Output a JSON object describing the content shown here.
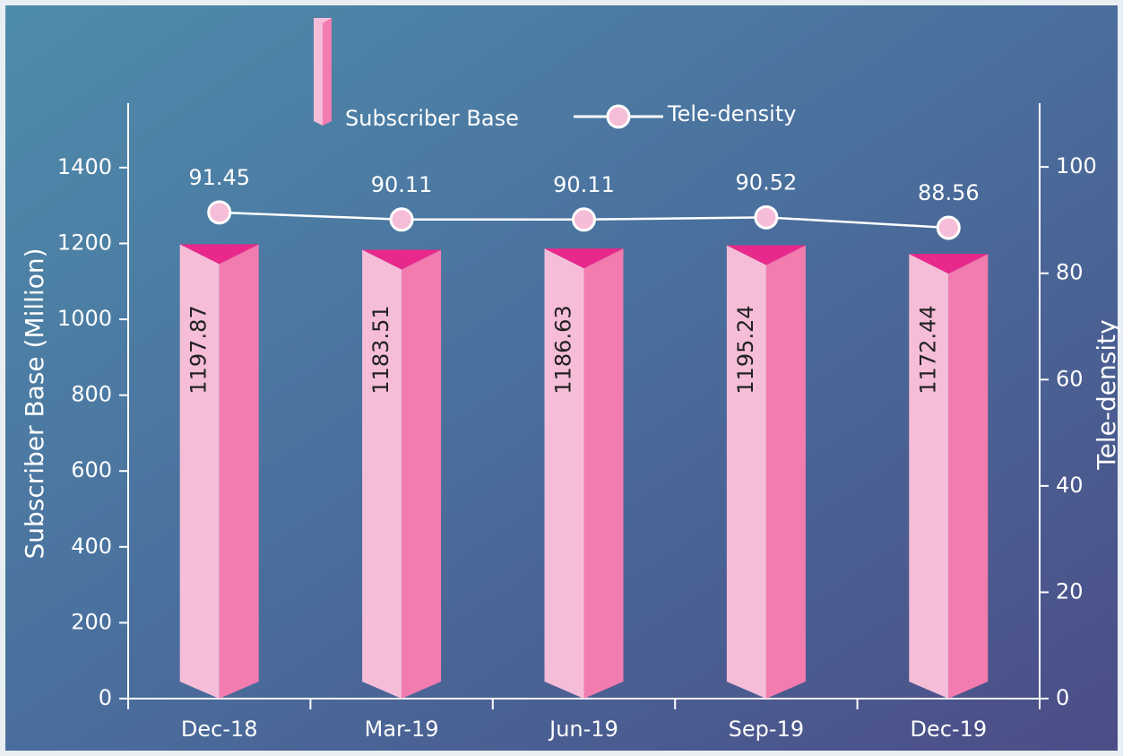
{
  "chart_data": {
    "type": "combo",
    "categories": [
      "Dec-18",
      "Mar-19",
      "Jun-19",
      "Sep-19",
      "Dec-19"
    ],
    "series": [
      {
        "name": "Subscriber Base",
        "type": "bar",
        "color": "#f27bb0",
        "values": [
          1197.87,
          1183.51,
          1186.63,
          1195.24,
          1172.44
        ]
      },
      {
        "name": "Tele-density",
        "type": "line",
        "axis": "y2",
        "color": "#ffffff",
        "values": [
          91.45,
          90.11,
          90.11,
          90.52,
          88.56
        ]
      }
    ],
    "ylabel": "Subscriber Base (Million)",
    "y2label": "Tele-density",
    "ylim": [
      0,
      1570
    ],
    "yticks": [
      0,
      200,
      400,
      600,
      800,
      1000,
      1200,
      1400
    ],
    "y2lim": [
      0,
      112
    ],
    "y2ticks": [
      0,
      20,
      40,
      60,
      80,
      100
    ],
    "legend": "top",
    "grid": false
  }
}
